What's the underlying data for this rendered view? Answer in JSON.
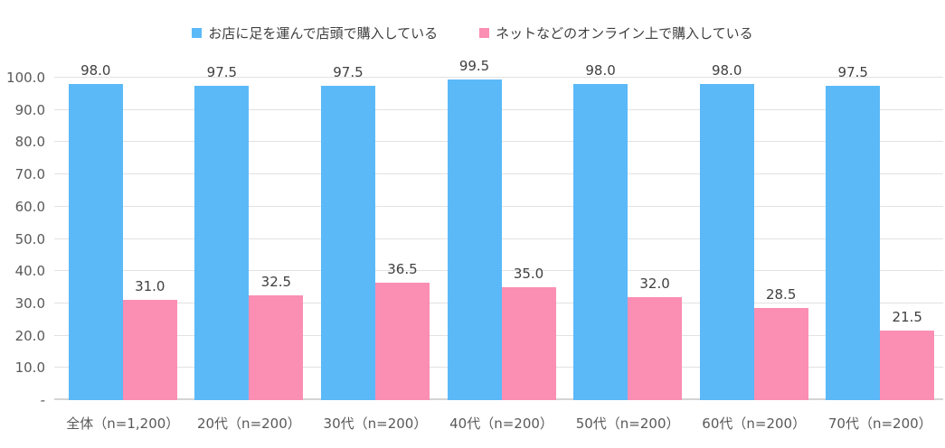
{
  "chart_data": {
    "type": "bar",
    "title": "",
    "xlabel": "",
    "ylabel": "",
    "categories": [
      "全体（n=1,200）",
      "20代（n=200）",
      "30代（n=200）",
      "40代（n=200）",
      "50代（n=200）",
      "60代（n=200）",
      "70代（n=200）"
    ],
    "series": [
      {
        "name": "お店に足を運んで店頭で購入している",
        "color": "#5BB9F8",
        "values": [
          98.0,
          97.5,
          97.5,
          99.5,
          98.0,
          98.0,
          97.5
        ]
      },
      {
        "name": "ネットなどのオンライン上で購入している",
        "color": "#FA8EB3",
        "values": [
          31.0,
          32.5,
          36.5,
          35.0,
          32.0,
          28.5,
          21.5
        ]
      }
    ],
    "ylim": [
      0,
      100
    ],
    "ytick_interval": 10,
    "yticks": [
      "100.0",
      "90.0",
      "80.0",
      "70.0",
      "60.0",
      "50.0",
      "40.0",
      "30.0",
      "20.0",
      "10.0",
      "-"
    ],
    "grid": "horizontal",
    "legend_position": "top",
    "value_label_decimals": 1
  }
}
